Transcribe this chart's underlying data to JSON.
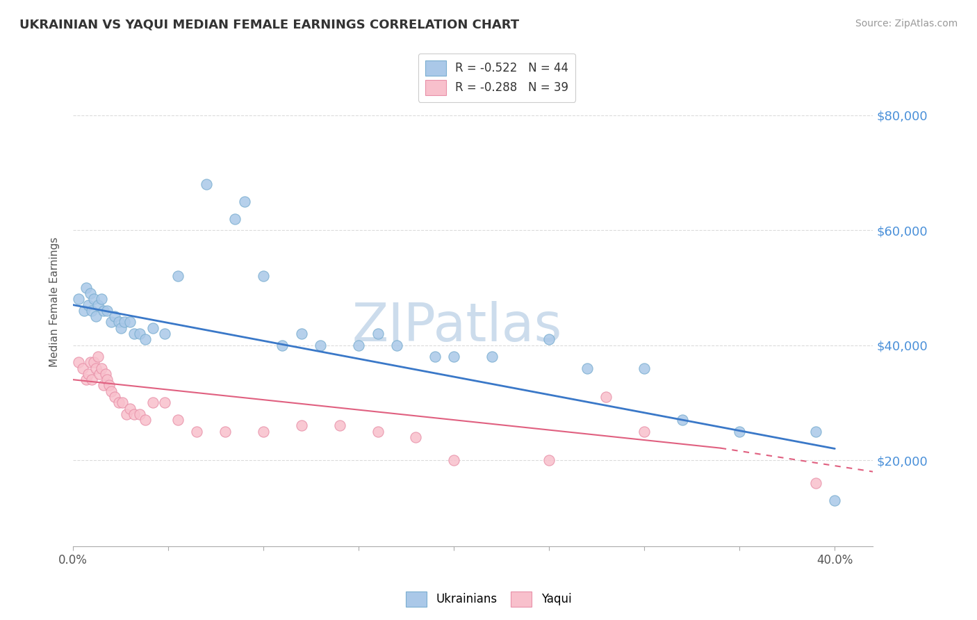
{
  "title": "UKRAINIAN VS YAQUI MEDIAN FEMALE EARNINGS CORRELATION CHART",
  "source": "Source: ZipAtlas.com",
  "ylabel": "Median Female Earnings",
  "xlim": [
    0.0,
    0.42
  ],
  "ylim": [
    5000,
    90000
  ],
  "yticks": [
    20000,
    40000,
    60000,
    80000
  ],
  "ytick_labels": [
    "$20,000",
    "$40,000",
    "$60,000",
    "$80,000"
  ],
  "xticks": [
    0.0,
    0.05,
    0.1,
    0.15,
    0.2,
    0.25,
    0.3,
    0.35,
    0.4
  ],
  "blue_R": "R = -0.522",
  "blue_N": "N = 44",
  "pink_R": "R = -0.288",
  "pink_N": "N = 39",
  "watermark": "ZIPatlas",
  "watermark_color": "#ccdcec",
  "title_color": "#333333",
  "background_color": "#ffffff",
  "grid_color": "#cccccc",
  "blue_dot_color": "#aac8e8",
  "blue_dot_edge": "#7aaed0",
  "pink_dot_color": "#f8c0cc",
  "pink_dot_edge": "#e890a8",
  "blue_line_color": "#3a78c8",
  "pink_line_color": "#e06080",
  "label_color": "#4a90d9",
  "ukrainians_x": [
    0.003,
    0.006,
    0.007,
    0.008,
    0.009,
    0.01,
    0.011,
    0.012,
    0.013,
    0.015,
    0.016,
    0.018,
    0.02,
    0.022,
    0.024,
    0.025,
    0.027,
    0.03,
    0.032,
    0.035,
    0.038,
    0.042,
    0.048,
    0.055,
    0.07,
    0.085,
    0.09,
    0.1,
    0.11,
    0.12,
    0.13,
    0.15,
    0.16,
    0.17,
    0.19,
    0.2,
    0.22,
    0.25,
    0.27,
    0.3,
    0.32,
    0.35,
    0.39,
    0.4
  ],
  "ukrainians_y": [
    48000,
    46000,
    50000,
    47000,
    49000,
    46000,
    48000,
    45000,
    47000,
    48000,
    46000,
    46000,
    44000,
    45000,
    44000,
    43000,
    44000,
    44000,
    42000,
    42000,
    41000,
    43000,
    42000,
    52000,
    68000,
    62000,
    65000,
    52000,
    40000,
    42000,
    40000,
    40000,
    42000,
    40000,
    38000,
    38000,
    38000,
    41000,
    36000,
    36000,
    27000,
    25000,
    25000,
    13000
  ],
  "yaqui_x": [
    0.003,
    0.005,
    0.007,
    0.008,
    0.009,
    0.01,
    0.011,
    0.012,
    0.013,
    0.014,
    0.015,
    0.016,
    0.017,
    0.018,
    0.019,
    0.02,
    0.022,
    0.024,
    0.026,
    0.028,
    0.03,
    0.032,
    0.035,
    0.038,
    0.042,
    0.048,
    0.055,
    0.065,
    0.08,
    0.1,
    0.12,
    0.14,
    0.16,
    0.18,
    0.2,
    0.25,
    0.28,
    0.3,
    0.39
  ],
  "yaqui_y": [
    37000,
    36000,
    34000,
    35000,
    37000,
    34000,
    37000,
    36000,
    38000,
    35000,
    36000,
    33000,
    35000,
    34000,
    33000,
    32000,
    31000,
    30000,
    30000,
    28000,
    29000,
    28000,
    28000,
    27000,
    30000,
    30000,
    27000,
    25000,
    25000,
    25000,
    26000,
    26000,
    25000,
    24000,
    20000,
    20000,
    31000,
    25000,
    16000
  ],
  "blue_line_x0": 0.0,
  "blue_line_y0": 47000,
  "blue_line_x1": 0.4,
  "blue_line_y1": 22000,
  "pink_line_x0": 0.0,
  "pink_line_y0": 34000,
  "pink_line_x1": 0.4,
  "pink_line_y1": 20000
}
